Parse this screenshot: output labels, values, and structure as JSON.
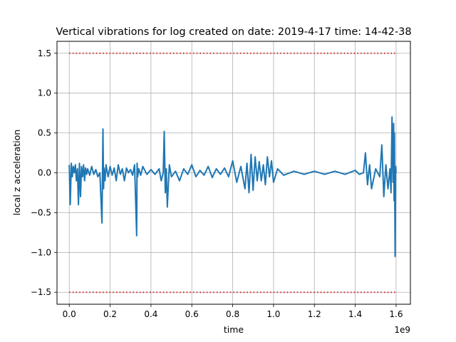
{
  "chart_data": {
    "type": "line",
    "title": "Vertical vibrations for log created on date: 2019-4-17 time: 14-42-38",
    "xlabel": "time",
    "ylabel": "local z acceleration",
    "x_offset_label": "1e9",
    "xlim": [
      -0.06,
      1.67
    ],
    "ylim": [
      -1.65,
      1.65
    ],
    "xticks": [
      0.0,
      0.2,
      0.4,
      0.6,
      0.8,
      1.0,
      1.2,
      1.4,
      1.6
    ],
    "xtick_labels": [
      "0.0",
      "0.2",
      "0.4",
      "0.6",
      "0.8",
      "1.0",
      "1.2",
      "1.4",
      "1.6"
    ],
    "yticks": [
      -1.5,
      -1.0,
      -0.5,
      0.0,
      0.5,
      1.0,
      1.5
    ],
    "ytick_labels": [
      "−1.5",
      "−1.0",
      "−0.5",
      "0.0",
      "0.5",
      "1.0",
      "1.5"
    ],
    "grid": true,
    "colors": {
      "signal": "#1f77b4",
      "threshold": "#d62728",
      "grid": "#b0b0b0"
    },
    "series": [
      {
        "style": "line",
        "x": [
          0.0,
          0.005,
          0.01,
          0.015,
          0.02,
          0.025,
          0.03,
          0.035,
          0.04,
          0.045,
          0.05,
          0.055,
          0.06,
          0.065,
          0.07,
          0.075,
          0.08,
          0.085,
          0.09,
          0.1,
          0.11,
          0.12,
          0.13,
          0.14,
          0.15,
          0.16,
          0.165,
          0.168,
          0.17,
          0.175,
          0.18,
          0.19,
          0.2,
          0.21,
          0.22,
          0.23,
          0.24,
          0.25,
          0.26,
          0.27,
          0.28,
          0.29,
          0.3,
          0.31,
          0.32,
          0.33,
          0.332,
          0.335,
          0.34,
          0.35,
          0.36,
          0.38,
          0.4,
          0.42,
          0.44,
          0.45,
          0.46,
          0.465,
          0.47,
          0.475,
          0.48,
          0.49,
          0.5,
          0.52,
          0.54,
          0.56,
          0.58,
          0.6,
          0.62,
          0.64,
          0.66,
          0.68,
          0.7,
          0.72,
          0.74,
          0.76,
          0.78,
          0.8,
          0.82,
          0.84,
          0.86,
          0.87,
          0.88,
          0.89,
          0.9,
          0.91,
          0.92,
          0.93,
          0.94,
          0.95,
          0.96,
          0.97,
          0.98,
          0.99,
          1.0,
          1.02,
          1.05,
          1.1,
          1.15,
          1.2,
          1.25,
          1.3,
          1.35,
          1.4,
          1.42,
          1.44,
          1.45,
          1.46,
          1.47,
          1.48,
          1.5,
          1.52,
          1.53,
          1.54,
          1.55,
          1.56,
          1.57,
          1.575,
          1.58,
          1.585,
          1.588,
          1.59,
          1.592,
          1.595,
          1.598,
          1.6
        ],
        "y": [
          0.1,
          -0.4,
          0.12,
          -0.05,
          0.08,
          0.0,
          0.1,
          -0.1,
          0.05,
          -0.4,
          0.12,
          -0.3,
          0.08,
          -0.05,
          0.1,
          -0.1,
          0.06,
          -0.02,
          0.05,
          -0.03,
          0.08,
          -0.02,
          0.04,
          -0.05,
          0.0,
          -0.63,
          0.55,
          -0.2,
          0.06,
          -0.1,
          0.1,
          -0.05,
          0.08,
          -0.03,
          0.06,
          -0.1,
          0.1,
          -0.02,
          0.05,
          -0.1,
          0.06,
          0.0,
          0.04,
          -0.03,
          0.1,
          -0.79,
          0.12,
          -0.05,
          0.05,
          -0.03,
          0.08,
          -0.02,
          0.04,
          -0.02,
          0.05,
          -0.1,
          0.0,
          0.52,
          -0.25,
          0.05,
          -0.43,
          0.1,
          -0.05,
          0.02,
          -0.1,
          0.05,
          -0.02,
          0.1,
          -0.05,
          0.03,
          -0.03,
          0.08,
          -0.06,
          0.05,
          -0.02,
          0.06,
          -0.05,
          0.15,
          -0.12,
          0.08,
          -0.2,
          0.12,
          -0.25,
          0.23,
          -0.22,
          0.2,
          -0.1,
          0.14,
          -0.1,
          0.1,
          -0.15,
          0.2,
          -0.05,
          0.15,
          -0.12,
          0.05,
          -0.03,
          0.02,
          -0.02,
          0.02,
          -0.02,
          0.02,
          -0.02,
          0.03,
          -0.02,
          0.0,
          0.25,
          -0.15,
          0.1,
          -0.2,
          0.05,
          -0.05,
          0.35,
          -0.3,
          0.1,
          -0.2,
          0.05,
          -0.25,
          0.7,
          -0.12,
          0.62,
          -0.35,
          0.5,
          -1.05,
          0.08,
          0.0
        ]
      },
      {
        "style": "dotted",
        "x": [
          0.0,
          1.6
        ],
        "y": [
          1.5,
          1.5
        ]
      },
      {
        "style": "dotted",
        "x": [
          0.0,
          1.6
        ],
        "y": [
          -1.5,
          -1.5
        ]
      }
    ]
  }
}
